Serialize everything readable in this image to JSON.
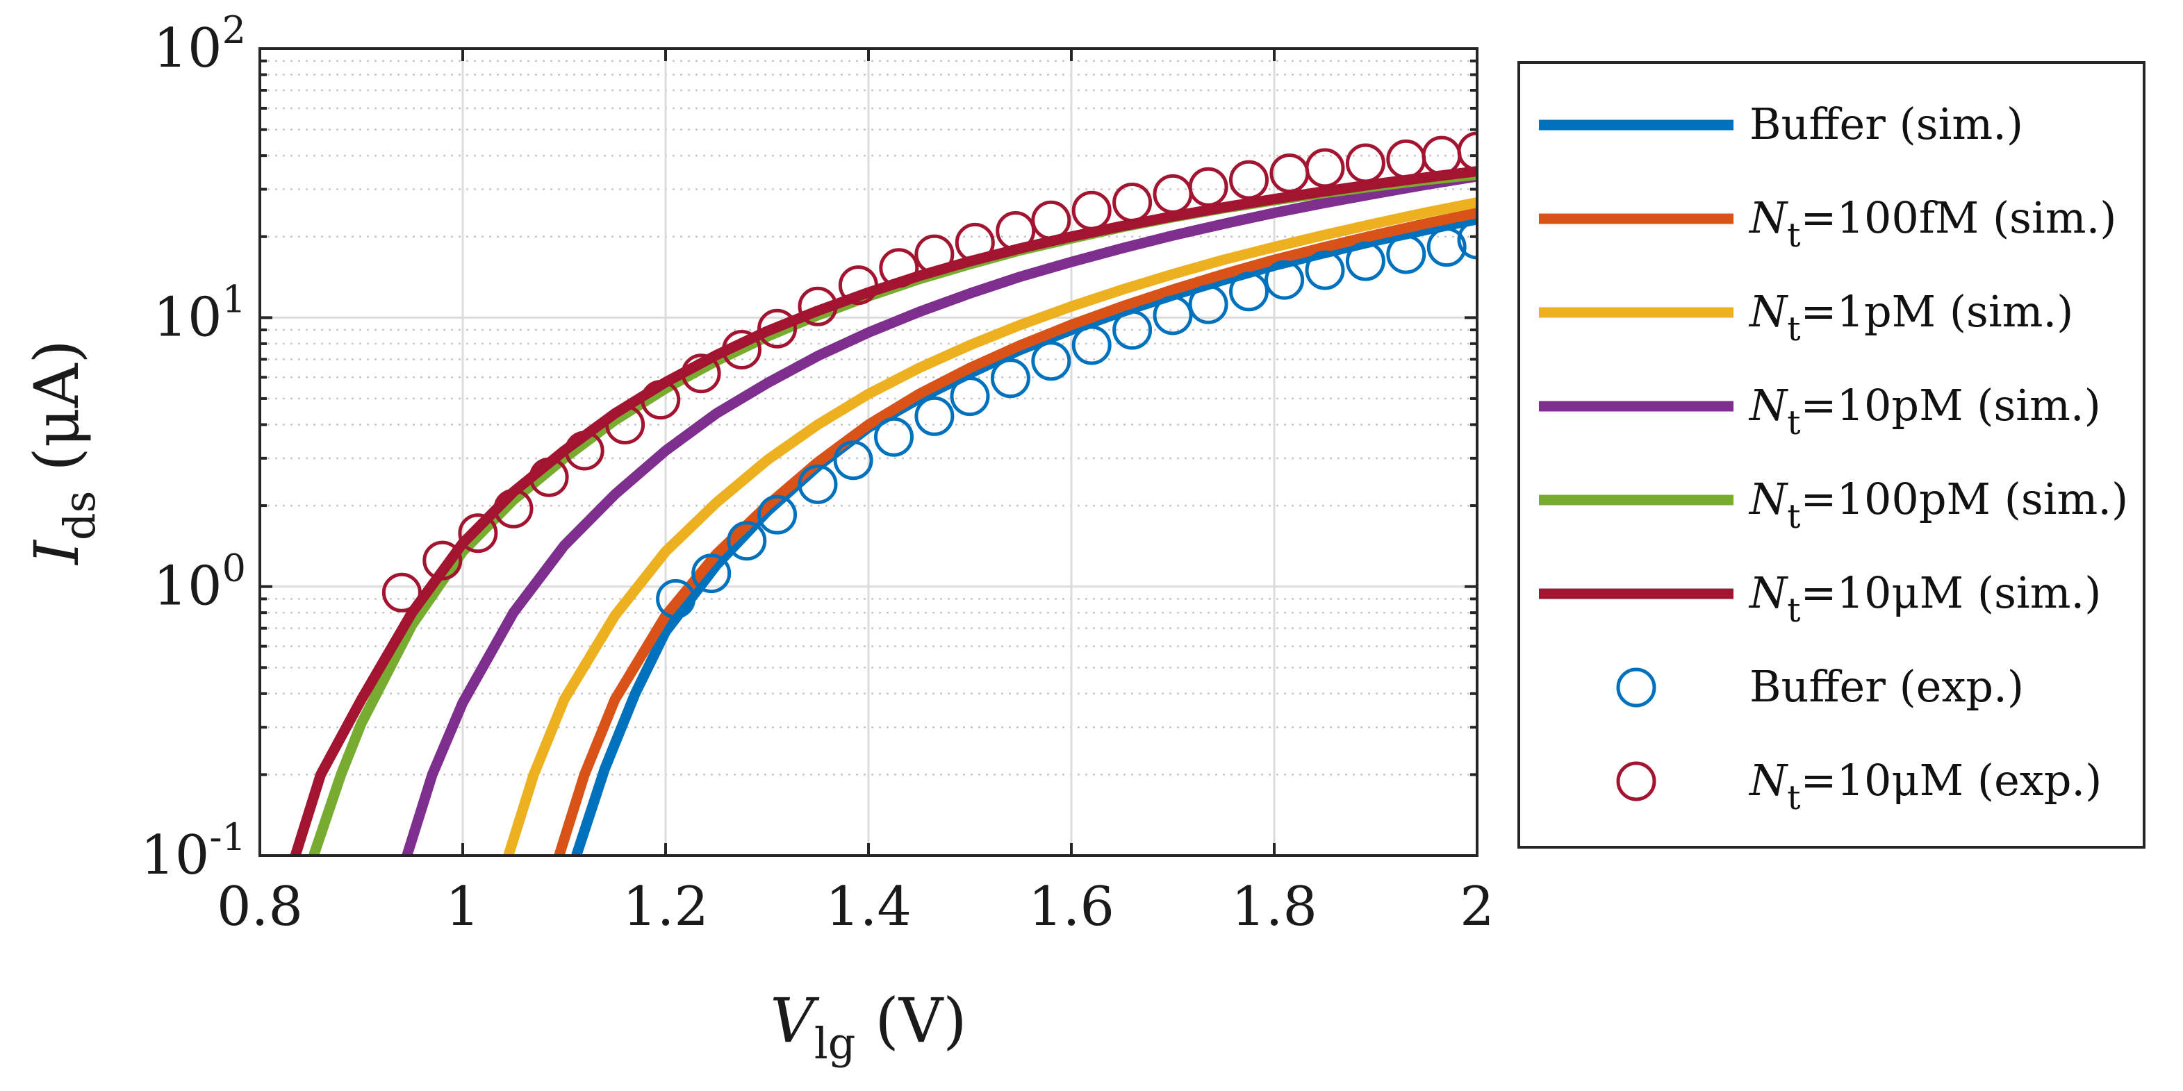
{
  "chart_data": {
    "type": "line",
    "x_scale": "linear",
    "y_scale": "log",
    "xlim": [
      0.8,
      2.0
    ],
    "ylim": [
      0.1,
      100
    ],
    "grid": true,
    "minor_grid": true,
    "x_ticks": [
      0.8,
      1.0,
      1.2,
      1.4,
      1.6,
      1.8,
      2.0
    ],
    "x_tick_labels": [
      "0.8",
      "1",
      "1.2",
      "1.4",
      "1.6",
      "1.8",
      "2"
    ],
    "y_ticks": [
      {
        "value": 0.1,
        "base": "10",
        "exp": "-1"
      },
      {
        "value": 1,
        "base": "10",
        "exp": "0"
      },
      {
        "value": 10,
        "base": "10",
        "exp": "1"
      },
      {
        "value": 100,
        "base": "10",
        "exp": "2"
      }
    ],
    "xlabel": {
      "main": "V",
      "sub": "lg",
      "unit": " (V)"
    },
    "ylabel": {
      "main": "I",
      "sub": "ds",
      "unit": " (μA)"
    },
    "legend_position": "outside-right",
    "series": [
      {
        "name": "Buffer (sim.)",
        "label_main": "Buffer (sim.)",
        "label_sub": "",
        "label_rest": "",
        "kind": "line",
        "color": "#0072BD",
        "x": [
          1.112,
          1.14,
          1.17,
          1.2,
          1.25,
          1.3,
          1.35,
          1.4,
          1.45,
          1.5,
          1.55,
          1.6,
          1.65,
          1.7,
          1.75,
          1.8,
          1.85,
          1.9,
          1.95,
          2.0
        ],
        "y": [
          0.1,
          0.21,
          0.4,
          0.68,
          1.2,
          1.9,
          2.8,
          3.9,
          5.0,
          6.2,
          7.6,
          9.0,
          10.5,
          12.1,
          13.8,
          15.6,
          17.4,
          19.3,
          21.2,
          23.2
        ]
      },
      {
        "name": "Nt=100fM (sim.)",
        "label_main": "N",
        "label_sub": "t",
        "label_rest": "=100fM (sim.)",
        "kind": "line",
        "color": "#D95319",
        "x": [
          1.095,
          1.12,
          1.15,
          1.2,
          1.25,
          1.3,
          1.35,
          1.4,
          1.45,
          1.5,
          1.55,
          1.6,
          1.65,
          1.7,
          1.75,
          1.8,
          1.85,
          1.9,
          1.95,
          2.0
        ],
        "y": [
          0.1,
          0.2,
          0.38,
          0.78,
          1.32,
          2.0,
          2.9,
          4.0,
          5.2,
          6.5,
          7.9,
          9.4,
          11.0,
          12.7,
          14.5,
          16.4,
          18.3,
          20.3,
          22.4,
          24.5
        ]
      },
      {
        "name": "Nt=1pM (sim.)",
        "label_main": "N",
        "label_sub": "t",
        "label_rest": "=1pM (sim.)",
        "kind": "line",
        "color": "#EDB120",
        "x": [
          1.045,
          1.07,
          1.1,
          1.15,
          1.2,
          1.25,
          1.3,
          1.35,
          1.4,
          1.45,
          1.5,
          1.55,
          1.6,
          1.65,
          1.7,
          1.75,
          1.8,
          1.85,
          1.9,
          1.95,
          2.0
        ],
        "y": [
          0.1,
          0.2,
          0.38,
          0.78,
          1.35,
          2.05,
          2.95,
          4.0,
          5.2,
          6.5,
          7.9,
          9.4,
          11.0,
          12.7,
          14.5,
          16.4,
          18.3,
          20.3,
          22.4,
          24.6,
          26.8
        ]
      },
      {
        "name": "Nt=10pM (sim.)",
        "label_main": "N",
        "label_sub": "t",
        "label_rest": "=10pM (sim.)",
        "kind": "line",
        "color": "#7E2F8E",
        "x": [
          0.945,
          0.97,
          1.0,
          1.05,
          1.1,
          1.15,
          1.2,
          1.25,
          1.3,
          1.35,
          1.4,
          1.45,
          1.5,
          1.55,
          1.6,
          1.65,
          1.7,
          1.75,
          1.8,
          1.85,
          1.9,
          1.95,
          2.0
        ],
        "y": [
          0.1,
          0.2,
          0.37,
          0.8,
          1.42,
          2.2,
          3.2,
          4.4,
          5.7,
          7.2,
          8.8,
          10.5,
          12.3,
          14.2,
          16.1,
          18.1,
          20.2,
          22.3,
          24.5,
          26.7,
          28.9,
          31.2,
          33.5
        ]
      },
      {
        "name": "Nt=100pM (sim.)",
        "label_main": "N",
        "label_sub": "t",
        "label_rest": "=100pM (sim.)",
        "kind": "line",
        "color": "#77AC30",
        "x": [
          0.853,
          0.88,
          0.9,
          0.95,
          1.0,
          1.05,
          1.1,
          1.15,
          1.2,
          1.25,
          1.3,
          1.35,
          1.4,
          1.45,
          1.5,
          1.55,
          1.6,
          1.65,
          1.7,
          1.75,
          1.8,
          1.85,
          1.9,
          1.95,
          2.0
        ],
        "y": [
          0.1,
          0.2,
          0.31,
          0.72,
          1.35,
          2.1,
          3.0,
          4.15,
          5.45,
          6.9,
          8.5,
          10.2,
          12.0,
          13.9,
          15.8,
          17.8,
          19.7,
          21.7,
          23.6,
          25.5,
          27.3,
          29.1,
          30.8,
          32.5,
          34.0
        ]
      },
      {
        "name": "Nt=10μM (sim.)",
        "label_main": "N",
        "label_sub": "t",
        "label_rest": "=10μM (sim.)",
        "kind": "line",
        "color": "#A2142F",
        "x": [
          0.835,
          0.86,
          0.9,
          0.95,
          1.0,
          1.05,
          1.1,
          1.15,
          1.2,
          1.25,
          1.3,
          1.35,
          1.4,
          1.45,
          1.5,
          1.55,
          1.6,
          1.65,
          1.7,
          1.75,
          1.8,
          1.85,
          1.9,
          1.95,
          2.0
        ],
        "y": [
          0.1,
          0.2,
          0.38,
          0.8,
          1.45,
          2.25,
          3.2,
          4.4,
          5.75,
          7.25,
          8.9,
          10.6,
          12.4,
          14.3,
          16.2,
          18.1,
          20.0,
          21.9,
          23.8,
          25.7,
          27.6,
          29.5,
          31.4,
          33.2,
          35.0
        ]
      },
      {
        "name": "Buffer (exp.)",
        "label_main": "Buffer (exp.)",
        "label_sub": "",
        "label_rest": "",
        "kind": "scatter",
        "color": "#0072BD",
        "x": [
          1.21,
          1.245,
          1.28,
          1.31,
          1.35,
          1.385,
          1.425,
          1.465,
          1.5,
          1.54,
          1.58,
          1.62,
          1.66,
          1.7,
          1.735,
          1.775,
          1.81,
          1.85,
          1.89,
          1.93,
          1.97,
          2.0
        ],
        "y": [
          0.9,
          1.12,
          1.48,
          1.85,
          2.4,
          2.95,
          3.6,
          4.3,
          5.1,
          5.95,
          6.9,
          7.9,
          9.0,
          10.2,
          11.2,
          12.5,
          13.8,
          15.0,
          16.2,
          17.2,
          18.3,
          19.5
        ]
      },
      {
        "name": "Nt=10μM (exp.)",
        "label_main": "N",
        "label_sub": "t",
        "label_rest": "=10μM (exp.)",
        "kind": "scatter",
        "color": "#A2142F",
        "x": [
          0.94,
          0.98,
          1.015,
          1.05,
          1.085,
          1.12,
          1.16,
          1.195,
          1.235,
          1.275,
          1.31,
          1.35,
          1.39,
          1.43,
          1.465,
          1.505,
          1.545,
          1.58,
          1.62,
          1.66,
          1.7,
          1.735,
          1.775,
          1.815,
          1.85,
          1.89,
          1.93,
          1.965,
          2.0
        ],
        "y": [
          0.95,
          1.25,
          1.58,
          1.95,
          2.55,
          3.2,
          4.0,
          4.95,
          6.2,
          7.6,
          9.1,
          11.0,
          13.2,
          15.3,
          17.2,
          19.0,
          21.0,
          23.0,
          25.0,
          26.8,
          28.8,
          30.6,
          32.5,
          34.4,
          36.0,
          37.5,
          38.8,
          40.0,
          41.5
        ]
      }
    ]
  }
}
